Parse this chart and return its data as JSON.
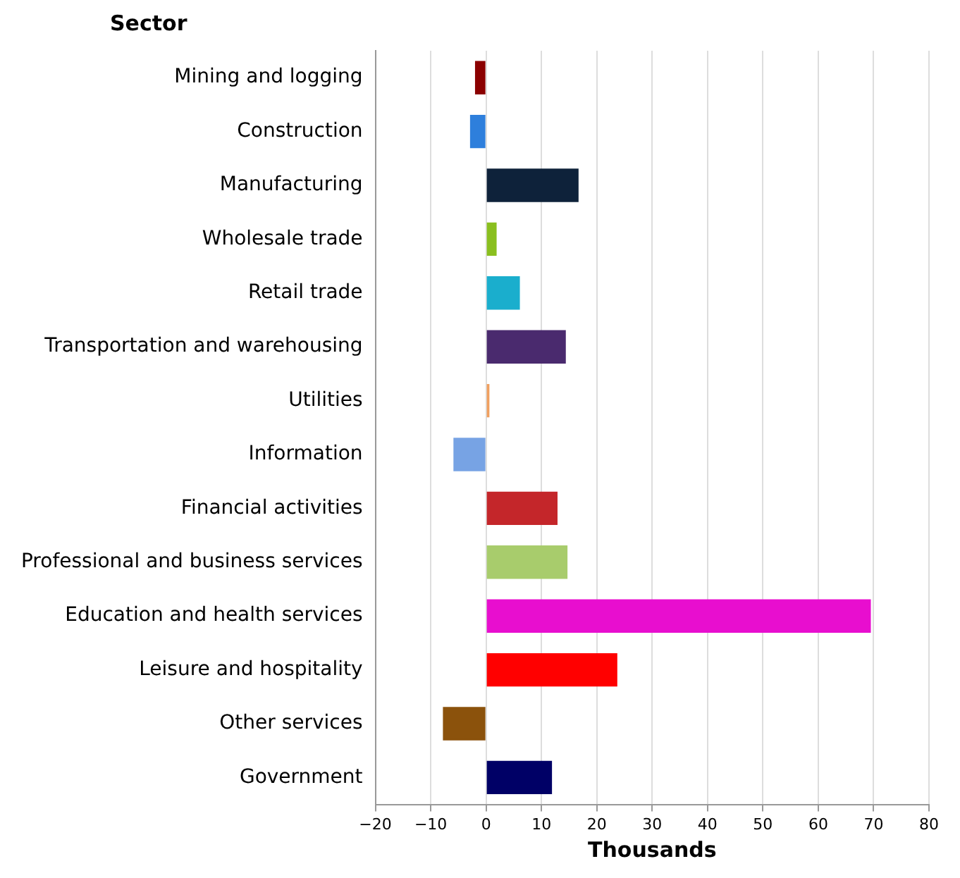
{
  "chart_data": {
    "type": "bar",
    "orientation": "horizontal",
    "ylabel": "Sector",
    "xlabel": "Thousands",
    "categories": [
      "Mining and logging",
      "Construction",
      "Manufacturing",
      "Wholesale trade",
      "Retail trade",
      "Transportation and warehousing",
      "Utilities",
      "Information",
      "Financial activities",
      "Professional and business services",
      "Education and health services",
      "Leisure and hospitality",
      "Other services",
      "Government"
    ],
    "values": [
      -2,
      -2.9,
      16.7,
      1.9,
      6.1,
      14.4,
      0.6,
      -5.9,
      12.9,
      14.7,
      69.5,
      23.7,
      -7.8,
      11.9
    ],
    "colors": [
      "#8b0000",
      "#2e7fdc",
      "#0e223a",
      "#8abf1f",
      "#1aaecd",
      "#4a2a6e",
      "#f0a060",
      "#77a3e4",
      "#c4262a",
      "#a8cc6c",
      "#e80ecf",
      "#ff0000",
      "#8b520c",
      "#000066"
    ],
    "xlim": [
      -20,
      80
    ],
    "xticks": [
      -20,
      -10,
      0,
      10,
      20,
      30,
      40,
      50,
      60,
      70,
      80
    ],
    "grid": "x",
    "legend": false
  }
}
